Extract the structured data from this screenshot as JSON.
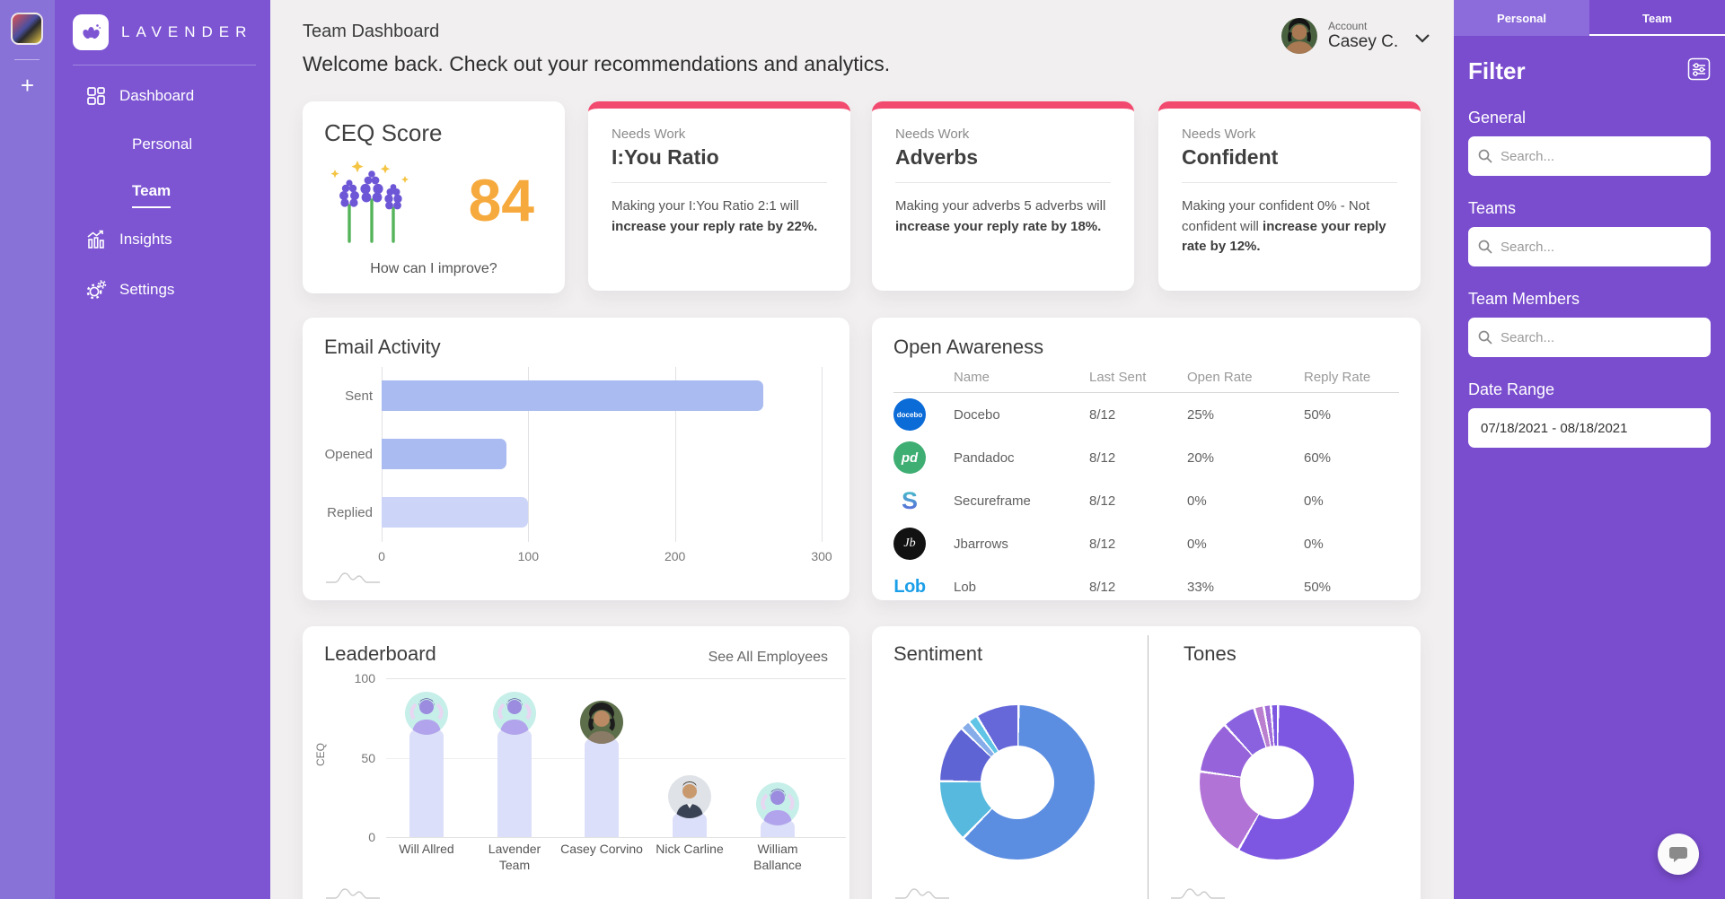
{
  "app": {
    "brand": "LAVENDER"
  },
  "rail": {
    "plus": "+"
  },
  "sidebar": {
    "items": [
      {
        "label": "Dashboard"
      },
      {
        "label": "Personal"
      },
      {
        "label": "Team"
      },
      {
        "label": "Insights"
      },
      {
        "label": "Settings"
      }
    ]
  },
  "header": {
    "title": "Team Dashboard",
    "subtitle": "Welcome back. Check out your recommendations and analytics.",
    "account_label": "Account",
    "account_name": "Casey C."
  },
  "ceq": {
    "title": "CEQ Score",
    "score": "84",
    "improve_link": "How can I improve?"
  },
  "needs_work": [
    {
      "tag": "Needs Work",
      "title": "I:You Ratio",
      "body": "Making your I:You Ratio 2:1 will ",
      "body_bold": "increase your reply rate by 22%."
    },
    {
      "tag": "Needs Work",
      "title": "Adverbs",
      "body": "Making your adverbs 5 adverbs will ",
      "body_bold": "increase your reply rate by 18%."
    },
    {
      "tag": "Needs Work",
      "title": "Confident",
      "body": "Making your confident 0% - Not confident will ",
      "body_bold": "increase your reply rate by 12%."
    }
  ],
  "open_awareness": {
    "title": "Open Awareness",
    "columns": [
      "Name",
      "Last Sent",
      "Open Rate",
      "Reply Rate"
    ],
    "rows": [
      {
        "logo": "docebo",
        "logo_text": "docebo",
        "name": "Docebo",
        "last_sent": "8/12",
        "open_rate": "25%",
        "reply_rate": "50%"
      },
      {
        "logo": "pandadoc",
        "logo_text": "pd",
        "name": "Pandadoc",
        "last_sent": "8/12",
        "open_rate": "20%",
        "reply_rate": "60%"
      },
      {
        "logo": "secureframe",
        "logo_text": "S",
        "name": "Secureframe",
        "last_sent": "8/12",
        "open_rate": "0%",
        "reply_rate": "0%"
      },
      {
        "logo": "jbarrows",
        "logo_text": "Jb",
        "name": "Jbarrows",
        "last_sent": "8/12",
        "open_rate": "0%",
        "reply_rate": "0%"
      },
      {
        "logo": "lob",
        "logo_text": "Lob",
        "name": "Lob",
        "last_sent": "8/12",
        "open_rate": "33%",
        "reply_rate": "50%"
      }
    ]
  },
  "leaderboard": {
    "see_all_label": "See All Employees"
  },
  "filter": {
    "title": "Filter",
    "tabs": [
      {
        "label": "Personal"
      },
      {
        "label": "Team"
      }
    ],
    "active_tab": "Team",
    "sections": [
      {
        "label": "General",
        "placeholder": "Search..."
      },
      {
        "label": "Teams",
        "placeholder": "Search..."
      },
      {
        "label": "Team Members",
        "placeholder": "Search..."
      },
      {
        "label": "Date Range",
        "value": "07/18/2021 - 08/18/2021"
      }
    ]
  },
  "chart_data": [
    {
      "type": "bar",
      "title": "Email Activity",
      "orientation": "horizontal",
      "categories": [
        "Sent",
        "Opened",
        "Replied"
      ],
      "values": [
        260,
        85,
        100
      ],
      "colors": [
        "#a9bbf0",
        "#a9bbf0",
        "#ccd5f8"
      ],
      "xlim": [
        0,
        300
      ],
      "xticks": [
        0,
        100,
        200,
        300
      ],
      "grid": true
    },
    {
      "type": "bar",
      "title": "Leaderboard",
      "categories": [
        "Will Allred",
        "Lavender Team",
        "Casey Corvino",
        "Nick Carline",
        "William Ballance"
      ],
      "values": [
        68,
        68,
        62,
        15,
        11
      ],
      "color": "#dcdff9",
      "ylabel": "CEQ",
      "ylim": [
        0,
        100
      ],
      "yticks": [
        100,
        50,
        0
      ],
      "grid": true
    },
    {
      "type": "pie",
      "title": "Sentiment",
      "legend": "none",
      "segments": [
        {
          "label": "segment-1",
          "value": 62,
          "color": "#5b8de1"
        },
        {
          "label": "segment-2",
          "value": 13,
          "color": "#57b9de"
        },
        {
          "label": "segment-3",
          "value": 12,
          "color": "#5e64d4"
        },
        {
          "label": "segment-4",
          "value": 2,
          "color": "#86ace9"
        },
        {
          "label": "segment-5",
          "value": 2,
          "color": "#5fc4e6"
        },
        {
          "label": "segment-6",
          "value": 9,
          "color": "#6668da"
        }
      ]
    },
    {
      "type": "pie",
      "title": "Tones",
      "legend": "none",
      "segments": [
        {
          "label": "segment-1",
          "value": 58,
          "color": "#7d57e2"
        },
        {
          "label": "segment-2",
          "value": 19,
          "color": "#b273d6"
        },
        {
          "label": "segment-3",
          "value": 11,
          "color": "#9763da"
        },
        {
          "label": "segment-4",
          "value": 7,
          "color": "#8a62e0"
        },
        {
          "label": "segment-5",
          "value": 2,
          "color": "#bb7fd0"
        },
        {
          "label": "segment-6",
          "value": 1.5,
          "color": "#a06cd8"
        },
        {
          "label": "segment-7",
          "value": 1.5,
          "color": "#7d57e2"
        }
      ]
    }
  ]
}
